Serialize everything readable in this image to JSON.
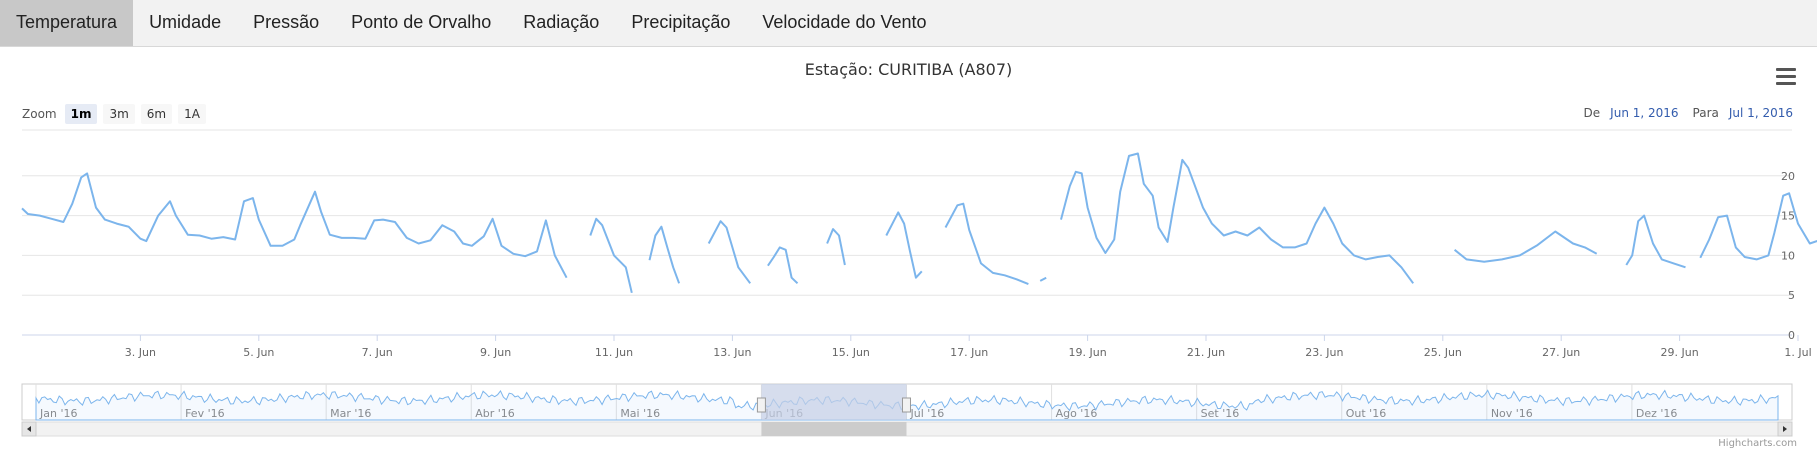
{
  "tabs": [
    {
      "label": "Temperatura",
      "active": true
    },
    {
      "label": "Umidade",
      "active": false
    },
    {
      "label": "Pressão",
      "active": false
    },
    {
      "label": "Ponto de Orvalho",
      "active": false
    },
    {
      "label": "Radiação",
      "active": false
    },
    {
      "label": "Precipitação",
      "active": false
    },
    {
      "label": "Velocidade do Vento",
      "active": false
    }
  ],
  "menu_icon": "hamburger-menu-icon",
  "zoom": {
    "label": "Zoom",
    "buttons": [
      {
        "label": "1m",
        "selected": true
      },
      {
        "label": "3m",
        "selected": false
      },
      {
        "label": "6m",
        "selected": false
      },
      {
        "label": "1A",
        "selected": false
      }
    ]
  },
  "range": {
    "from_label": "De",
    "from": "Jun 1, 2016",
    "to_label": "Para",
    "to": "Jul 1, 2016"
  },
  "credits": "Highcharts.com",
  "colors": {
    "series": "#7cb5ec",
    "navigator_mask": "#c5cfe6",
    "grid": "#e6e6e6"
  },
  "chart_data": {
    "type": "line",
    "title": "Estação: CURITIBA (A807)",
    "xlabel": "",
    "ylabel": "",
    "x_range": [
      "2016-06-01",
      "2016-07-01"
    ],
    "ylim": [
      0,
      25
    ],
    "y_ticks": [
      0,
      5,
      10,
      15,
      20
    ],
    "x_ticks": [
      {
        "day": 3,
        "label": "3. Jun"
      },
      {
        "day": 5,
        "label": "5. Jun"
      },
      {
        "day": 7,
        "label": "7. Jun"
      },
      {
        "day": 9,
        "label": "9. Jun"
      },
      {
        "day": 11,
        "label": "11. Jun"
      },
      {
        "day": 13,
        "label": "13. Jun"
      },
      {
        "day": 15,
        "label": "15. Jun"
      },
      {
        "day": 17,
        "label": "17. Jun"
      },
      {
        "day": 19,
        "label": "19. Jun"
      },
      {
        "day": 21,
        "label": "21. Jun"
      },
      {
        "day": 23,
        "label": "23. Jun"
      },
      {
        "day": 25,
        "label": "25. Jun"
      },
      {
        "day": 27,
        "label": "27. Jun"
      },
      {
        "day": 29,
        "label": "29. Jun"
      },
      {
        "day": 31,
        "label": "1. Jul"
      }
    ],
    "grid": true,
    "series": [
      {
        "values": [
          [
            [
              1.0,
              15.9
            ],
            [
              1.1,
              15.2
            ],
            [
              1.3,
              15.0
            ],
            [
              1.5,
              14.6
            ],
            [
              1.7,
              14.2
            ],
            [
              1.85,
              16.5
            ],
            [
              2.0,
              19.8
            ],
            [
              2.1,
              20.3
            ],
            [
              2.25,
              16.0
            ],
            [
              2.4,
              14.5
            ],
            [
              2.6,
              14.0
            ],
            [
              2.8,
              13.6
            ],
            [
              3.0,
              12.1
            ],
            [
              3.1,
              11.8
            ],
            [
              3.3,
              15.0
            ],
            [
              3.5,
              16.8
            ],
            [
              3.6,
              15.0
            ],
            [
              3.8,
              12.6
            ],
            [
              4.0,
              12.5
            ],
            [
              4.2,
              12.1
            ],
            [
              4.4,
              12.3
            ],
            [
              4.6,
              12.0
            ],
            [
              4.75,
              16.8
            ],
            [
              4.9,
              17.2
            ],
            [
              5.0,
              14.5
            ],
            [
              5.2,
              11.2
            ],
            [
              5.4,
              11.2
            ],
            [
              5.6,
              12.0
            ],
            [
              5.7,
              13.8
            ],
            [
              5.95,
              18.0
            ],
            [
              6.05,
              15.5
            ],
            [
              6.2,
              12.6
            ],
            [
              6.4,
              12.2
            ],
            [
              6.6,
              12.2
            ],
            [
              6.8,
              12.1
            ],
            [
              6.95,
              14.4
            ],
            [
              7.1,
              14.5
            ],
            [
              7.3,
              14.2
            ],
            [
              7.5,
              12.2
            ],
            [
              7.7,
              11.5
            ],
            [
              7.9,
              11.9
            ],
            [
              8.1,
              13.8
            ],
            [
              8.3,
              13.0
            ],
            [
              8.45,
              11.5
            ],
            [
              8.6,
              11.2
            ],
            [
              8.8,
              12.4
            ],
            [
              8.95,
              14.6
            ],
            [
              9.1,
              11.2
            ],
            [
              9.3,
              10.2
            ],
            [
              9.5,
              9.9
            ],
            [
              9.7,
              10.5
            ],
            [
              9.85,
              14.4
            ],
            [
              10.0,
              10.0
            ],
            [
              10.2,
              7.2
            ]
          ],
          [
            [
              10.6,
              12.5
            ],
            [
              10.7,
              14.6
            ],
            [
              10.8,
              13.8
            ],
            [
              11.0,
              10.0
            ],
            [
              11.2,
              8.5
            ],
            [
              11.3,
              5.3
            ]
          ],
          [
            [
              11.6,
              9.4
            ],
            [
              11.7,
              12.5
            ],
            [
              11.8,
              13.6
            ],
            [
              11.9,
              11.0
            ],
            [
              12.0,
              8.5
            ],
            [
              12.1,
              6.5
            ]
          ],
          [
            [
              12.6,
              11.5
            ],
            [
              12.8,
              14.3
            ],
            [
              12.9,
              13.5
            ],
            [
              13.0,
              11.0
            ],
            [
              13.1,
              8.5
            ],
            [
              13.3,
              6.5
            ]
          ],
          [
            [
              13.6,
              8.7
            ],
            [
              13.7,
              9.8
            ],
            [
              13.8,
              11.0
            ],
            [
              13.9,
              10.7
            ],
            [
              14.0,
              7.2
            ],
            [
              14.1,
              6.5
            ]
          ],
          [
            [
              14.6,
              11.5
            ],
            [
              14.7,
              13.3
            ],
            [
              14.8,
              12.5
            ],
            [
              14.9,
              8.8
            ]
          ],
          [
            [
              15.6,
              12.5
            ],
            [
              15.8,
              15.4
            ],
            [
              15.9,
              14.0
            ],
            [
              16.0,
              10.5
            ],
            [
              16.1,
              7.2
            ],
            [
              16.2,
              8.0
            ]
          ],
          [
            [
              16.6,
              13.5
            ],
            [
              16.8,
              16.3
            ],
            [
              16.9,
              16.5
            ],
            [
              17.0,
              13.2
            ],
            [
              17.2,
              9.0
            ],
            [
              17.4,
              7.8
            ],
            [
              17.6,
              7.5
            ],
            [
              17.8,
              7.0
            ],
            [
              18.0,
              6.4
            ]
          ],
          [
            [
              18.2,
              6.8
            ],
            [
              18.3,
              7.2
            ]
          ],
          [
            [
              18.55,
              14.5
            ],
            [
              18.7,
              18.7
            ],
            [
              18.8,
              20.5
            ],
            [
              18.9,
              20.3
            ],
            [
              19.0,
              16.0
            ],
            [
              19.15,
              12.2
            ],
            [
              19.3,
              10.3
            ],
            [
              19.45,
              12.0
            ],
            [
              19.55,
              18.0
            ],
            [
              19.7,
              22.5
            ],
            [
              19.85,
              22.8
            ],
            [
              19.95,
              19.0
            ],
            [
              20.1,
              17.5
            ],
            [
              20.2,
              13.5
            ],
            [
              20.35,
              11.7
            ],
            [
              20.45,
              16.0
            ],
            [
              20.6,
              22.0
            ],
            [
              20.7,
              21.0
            ],
            [
              20.8,
              19.0
            ],
            [
              20.95,
              16.0
            ],
            [
              21.1,
              14.0
            ],
            [
              21.3,
              12.5
            ],
            [
              21.5,
              13.0
            ],
            [
              21.7,
              12.5
            ],
            [
              21.9,
              13.5
            ],
            [
              22.1,
              12.0
            ],
            [
              22.3,
              11.0
            ],
            [
              22.5,
              11.0
            ],
            [
              22.7,
              11.5
            ],
            [
              22.85,
              14.0
            ],
            [
              23.0,
              16.0
            ],
            [
              23.15,
              14.0
            ],
            [
              23.3,
              11.5
            ],
            [
              23.5,
              10.0
            ],
            [
              23.7,
              9.5
            ],
            [
              23.9,
              9.8
            ],
            [
              24.1,
              10.0
            ],
            [
              24.3,
              8.5
            ],
            [
              24.5,
              6.5
            ]
          ],
          [
            [
              25.2,
              10.7
            ],
            [
              25.4,
              9.5
            ],
            [
              25.7,
              9.2
            ],
            [
              26.0,
              9.5
            ],
            [
              26.3,
              10.0
            ],
            [
              26.6,
              11.3
            ],
            [
              26.9,
              13.0
            ],
            [
              27.0,
              12.5
            ],
            [
              27.2,
              11.5
            ],
            [
              27.4,
              11.0
            ],
            [
              27.6,
              10.2
            ]
          ],
          [
            [
              28.1,
              8.8
            ],
            [
              28.2,
              10.0
            ],
            [
              28.3,
              14.3
            ],
            [
              28.4,
              15.0
            ],
            [
              28.55,
              11.5
            ],
            [
              28.7,
              9.5
            ],
            [
              28.9,
              9.0
            ],
            [
              29.1,
              8.5
            ]
          ],
          [
            [
              29.35,
              9.7
            ],
            [
              29.5,
              12.0
            ],
            [
              29.65,
              14.8
            ],
            [
              29.8,
              15.0
            ],
            [
              29.95,
              11.0
            ],
            [
              30.1,
              9.8
            ],
            [
              30.3,
              9.5
            ],
            [
              30.5,
              10.0
            ],
            [
              30.6,
              12.8
            ],
            [
              30.75,
              17.5
            ],
            [
              30.85,
              17.8
            ],
            [
              31.0,
              14.0
            ],
            [
              31.2,
              11.5
            ],
            [
              31.4,
              12.0
            ],
            [
              31.6,
              11.8
            ],
            [
              31.8,
              11.5
            ],
            [
              32.0,
              12.5
            ],
            [
              32.2,
              14.0
            ],
            [
              32.4,
              14.0
            ],
            [
              32.6,
              13.5
            ],
            [
              32.8,
              12.3
            ],
            [
              33.0,
              11.5
            ],
            [
              33.2,
              11.0
            ],
            [
              33.35,
              12.5
            ],
            [
              33.5,
              16.0
            ],
            [
              33.6,
              19.7
            ],
            [
              33.75,
              20.0
            ],
            [
              33.9,
              16.0
            ],
            [
              34.1,
              11.0
            ],
            [
              34.3,
              9.0
            ],
            [
              34.45,
              6.5
            ]
          ],
          [
            [
              34.65,
              11.5
            ],
            [
              34.8,
              15.5
            ],
            [
              34.95,
              19.5
            ],
            [
              35.1,
              18.0
            ],
            [
              35.3,
              14.0
            ],
            [
              35.5,
              11.0
            ],
            [
              35.7,
              9.5
            ],
            [
              35.85,
              8.0
            ],
            [
              36.0,
              10.0
            ],
            [
              36.1,
              14.0
            ],
            [
              36.3,
              19.0
            ],
            [
              36.5,
              20.5
            ],
            [
              36.6,
              17.0
            ],
            [
              36.8,
              13.0
            ],
            [
              36.95,
              11.5
            ],
            [
              37.1,
              9.3
            ],
            [
              37.3,
              9.0
            ],
            [
              37.45,
              14.0
            ],
            [
              37.55,
              17.0
            ],
            [
              37.65,
              19.2
            ],
            [
              37.8,
              20.5
            ],
            [
              37.95,
              19.5
            ],
            [
              38.1,
              15.0
            ],
            [
              38.25,
              12.0
            ],
            [
              38.4,
              10.5
            ]
          ]
        ]
      }
    ],
    "navigator": {
      "month_labels": [
        "Jan '16",
        "Fev '16",
        "Mar '16",
        "Abr '16",
        "Mai '16",
        "Jun '16",
        "Jul '16",
        "Ago '16",
        "Set '16",
        "Out '16",
        "Nov '16",
        "Dez '16"
      ],
      "selected_range": [
        "2016-06-01",
        "2016-07-01"
      ]
    }
  }
}
